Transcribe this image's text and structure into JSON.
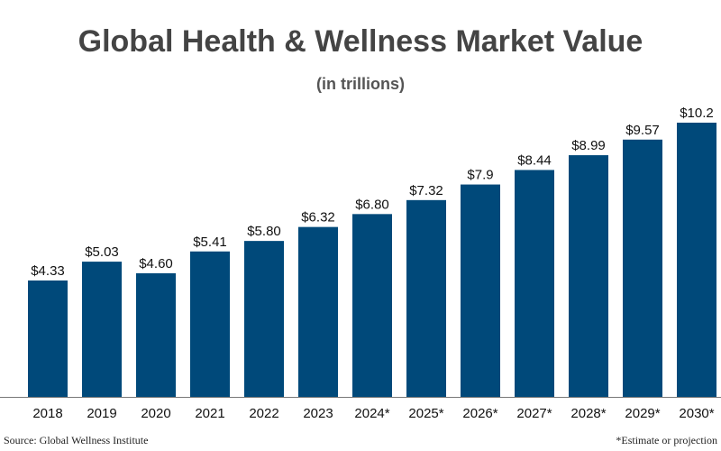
{
  "chart_data": {
    "type": "bar",
    "title": "Global Health & Wellness Market Value",
    "subtitle": "(in trillions)",
    "categories": [
      "2018",
      "2019",
      "2020",
      "2021",
      "2022",
      "2023",
      "2024*",
      "2025*",
      "2026*",
      "2027*",
      "2028*",
      "2029*",
      "2030*"
    ],
    "values": [
      4.33,
      5.03,
      4.6,
      5.41,
      5.8,
      6.32,
      6.8,
      7.32,
      7.9,
      8.44,
      8.99,
      9.57,
      10.2
    ],
    "data_labels": [
      "$4.33",
      "$5.03",
      "$4.60",
      "$5.41",
      "$5.80",
      "$6.32",
      "$6.80",
      "$7.32",
      "$7.9",
      "$8.44",
      "$8.99",
      "$9.57",
      "$10.2"
    ],
    "xlabel": "",
    "ylabel": "",
    "ylim": [
      0,
      10.2
    ],
    "grid": false,
    "bar_color": "#00497a",
    "axis_color": "#777777"
  },
  "footer": {
    "source": "Source: Global Wellness Institute",
    "note": "*Estimate or projection"
  }
}
